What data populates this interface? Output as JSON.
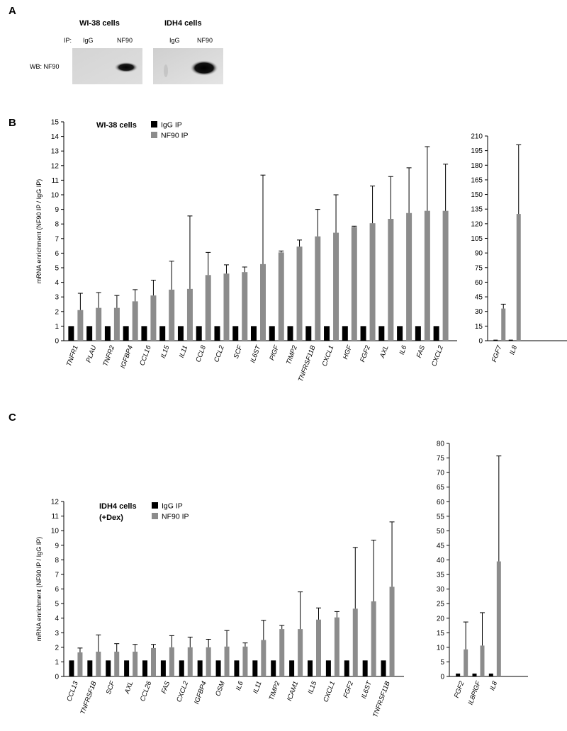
{
  "panels": {
    "a": {
      "letter": "A",
      "cells": [
        "WI-38 cells",
        "IDH4  cells"
      ],
      "ip_label": "IP:",
      "lanes": [
        "IgG",
        "NF90",
        "IgG",
        "NF90"
      ],
      "wb_label": "WB:  NF90"
    },
    "b": {
      "letter": "B"
    },
    "c": {
      "letter": "C"
    }
  },
  "colors": {
    "igg": "#000000",
    "nf90": "#8c8c8c",
    "axis": "#000000",
    "error": "#000000"
  },
  "chart_data": [
    {
      "id": "B-main",
      "type": "bar",
      "ylabel": "mRNA enrichment (NF90 IP / IgG IP)",
      "ylim": [
        0,
        15
      ],
      "yticks": [
        0,
        1,
        2,
        3,
        4,
        5,
        6,
        7,
        8,
        9,
        10,
        11,
        12,
        13,
        14,
        15
      ],
      "legend": {
        "title": "WI-38 cells",
        "position": "top-left"
      },
      "categories": [
        "TNFR1",
        "PLAU",
        "TNFR2",
        "IGFBP4",
        "CCL16",
        "IL15",
        "IL11",
        "CCL8",
        "CCL2",
        "SCF",
        "IL6ST",
        "PlGF",
        "TIMP2",
        "TNFRSF11B",
        "CXCL1",
        "HGF",
        "FGF2",
        "AXL",
        "IL6",
        "FAS",
        "CXCL2"
      ],
      "series": [
        {
          "name": "IgG IP",
          "color": "#000000",
          "values": [
            1,
            1,
            1,
            1,
            1,
            1,
            1,
            1,
            1,
            1,
            1,
            1,
            1,
            1,
            1,
            1,
            1,
            1,
            1,
            1,
            1
          ]
        },
        {
          "name": "NF90 IP",
          "color": "#8c8c8c",
          "values": [
            2.1,
            2.25,
            2.25,
            2.7,
            3.1,
            3.5,
            3.55,
            4.5,
            4.6,
            4.7,
            5.25,
            6.05,
            6.45,
            7.15,
            7.4,
            7.8,
            8.05,
            8.35,
            8.75,
            8.9,
            8.9
          ],
          "errors": [
            1.15,
            1.05,
            0.85,
            0.8,
            1.05,
            1.95,
            5.0,
            1.55,
            0.6,
            0.35,
            6.1,
            0.1,
            0.45,
            1.85,
            2.6,
            0.05,
            2.55,
            2.9,
            3.1,
            4.4,
            3.2
          ]
        }
      ]
    },
    {
      "id": "B-side",
      "type": "bar",
      "ylim": [
        0,
        210
      ],
      "yticks": [
        0,
        15,
        30,
        45,
        60,
        75,
        90,
        105,
        120,
        135,
        150,
        165,
        180,
        195,
        210
      ],
      "categories": [
        "FGF7",
        "IL8"
      ],
      "series": [
        {
          "name": "IgG IP",
          "color": "#000000",
          "values": [
            1,
            1
          ]
        },
        {
          "name": "NF90 IP",
          "color": "#8c8c8c",
          "values": [
            33,
            130
          ],
          "errors": [
            4.5,
            71
          ]
        }
      ]
    },
    {
      "id": "C-main",
      "type": "bar",
      "ylabel": "mRNA enrichment (NF90 IP / IgG IP)",
      "ylim": [
        0,
        12
      ],
      "yticks": [
        0,
        1,
        2,
        3,
        4,
        5,
        6,
        7,
        8,
        9,
        10,
        11,
        12
      ],
      "legend": {
        "title": "IDH4 cells",
        "subtitle": "(+Dex)",
        "position": "top-left"
      },
      "categories": [
        "CCL13",
        "TNFRSF1B",
        "SCF",
        "AXL",
        "CCL26",
        "FAS",
        "CXCL2",
        "IGFBP4",
        "OSM",
        "IL6",
        "IL11",
        "TIMP2",
        "ICAM1",
        "IL15",
        "CXCL1",
        "FGF2",
        "IL6ST",
        "TNFRSF11B"
      ],
      "series": [
        {
          "name": "IgG IP",
          "color": "#000000",
          "values": [
            1.1,
            1.1,
            1.1,
            1.1,
            1.1,
            1.1,
            1.1,
            1.1,
            1.1,
            1.1,
            1.1,
            1.1,
            1.1,
            1.1,
            1.1,
            1.1,
            1.1,
            1.1
          ]
        },
        {
          "name": "NF90 IP",
          "color": "#8c8c8c",
          "values": [
            1.65,
            1.7,
            1.7,
            1.7,
            1.95,
            2.0,
            2.0,
            2.0,
            2.05,
            2.05,
            2.5,
            3.25,
            3.25,
            3.9,
            4.05,
            4.65,
            5.15,
            6.15
          ],
          "errors": [
            0.3,
            1.15,
            0.55,
            0.5,
            0.25,
            0.8,
            0.7,
            0.55,
            1.1,
            0.25,
            1.35,
            0.25,
            2.55,
            0.8,
            0.4,
            4.2,
            4.2,
            4.45
          ]
        }
      ]
    },
    {
      "id": "C-side",
      "type": "bar",
      "ylim": [
        0,
        80
      ],
      "yticks": [
        0,
        5,
        10,
        15,
        20,
        25,
        30,
        35,
        40,
        45,
        50,
        55,
        60,
        65,
        70,
        75,
        80
      ],
      "categories": [
        "FGF2",
        "IL8PlGF",
        "IL8"
      ],
      "series": [
        {
          "name": "IgG IP",
          "color": "#000000",
          "values": [
            1,
            1,
            1
          ]
        },
        {
          "name": "NF90 IP",
          "color": "#8c8c8c",
          "values": [
            9.3,
            10.6,
            39.5
          ],
          "errors": [
            9.4,
            11.3,
            36.2
          ]
        }
      ]
    }
  ]
}
